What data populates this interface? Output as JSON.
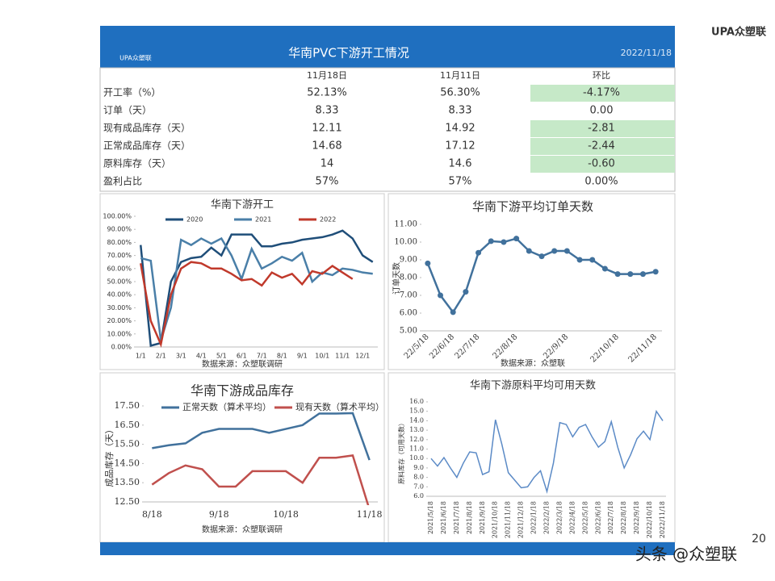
{
  "brand": "UPA众塑联",
  "header": {
    "title": "华南PVC下游开工情况",
    "date": "2022/11/18"
  },
  "table": {
    "highlight_color": "#c6e9c8",
    "columns": [
      "11月18日",
      "11月11日",
      "环比"
    ],
    "rows": [
      {
        "cells": [
          "开工率（%）",
          "52.13%",
          "56.30%",
          "-4.17%"
        ],
        "highlight": true
      },
      {
        "cells": [
          "订单（天）",
          "8.33",
          "8.33",
          "0.00"
        ],
        "highlight": false
      },
      {
        "cells": [
          "现有成品库存（天）",
          "12.11",
          "14.92",
          "-2.81"
        ],
        "highlight": true
      },
      {
        "cells": [
          "正常成品库存（天）",
          "14.68",
          "17.12",
          "-2.44"
        ],
        "highlight": true
      },
      {
        "cells": [
          "原料库存（天）",
          "14",
          "14.6",
          "-0.60"
        ],
        "highlight": true
      },
      {
        "cells": [
          "盈利占比",
          "57%",
          "57%",
          "0.00%"
        ],
        "highlight": false
      }
    ]
  },
  "chart_data": [
    {
      "type": "line",
      "title": "华南下游开工",
      "source": "数据来源：众塑联调研",
      "legend": "top",
      "categories": [
        "1/1",
        null,
        "2/1",
        null,
        "3/1",
        null,
        "4/1",
        null,
        "5/1",
        null,
        "6/1",
        null,
        "7/1",
        null,
        "8/1",
        null,
        "9/1",
        null,
        "10/1",
        null,
        "11/1",
        null,
        "12/1",
        null
      ],
      "series": [
        {
          "name": "2020",
          "color": "#1f4e79",
          "values": [
            78,
            1,
            3,
            50,
            65,
            68,
            69,
            76,
            70,
            86,
            86,
            86,
            77,
            77,
            79,
            80,
            82,
            83,
            84,
            86,
            89,
            83,
            70,
            65
          ]
        },
        {
          "name": "2021",
          "color": "#4a7fa8",
          "values": [
            68,
            66,
            5,
            30,
            82,
            78,
            83,
            79,
            83,
            70,
            52,
            75,
            60,
            64,
            69,
            66,
            72,
            50,
            57,
            55,
            60,
            59,
            57,
            56
          ]
        },
        {
          "name": "2022",
          "color": "#c0392b",
          "values": [
            64,
            20,
            2,
            40,
            60,
            65,
            64,
            60,
            60,
            56,
            51,
            52,
            47,
            57,
            53,
            56,
            48,
            58,
            56,
            62,
            57,
            52,
            null,
            null
          ]
        }
      ],
      "ylim": [
        0,
        100
      ],
      "yticks": [
        {
          "value": 0,
          "label": "0.00%"
        },
        {
          "value": 10,
          "label": "10.00%"
        },
        {
          "value": 20,
          "label": "20.00%"
        },
        {
          "value": 30,
          "label": "30.00%"
        },
        {
          "value": 40,
          "label": "40.00%"
        },
        {
          "value": 50,
          "label": "50.00%"
        },
        {
          "value": 60,
          "label": "60.00%"
        },
        {
          "value": 70,
          "label": "70.00%"
        },
        {
          "value": 80,
          "label": "80.00%"
        },
        {
          "value": 90,
          "label": "90.00%"
        },
        {
          "value": 100,
          "label": "100.00%"
        }
      ]
    },
    {
      "type": "line",
      "title": "华南下游平均订单天数",
      "ylabel": "订单天数",
      "source": "数据来源：众塑联",
      "markers": true,
      "color": "#41719c",
      "categories": [
        "22/5/18",
        null,
        "22/6/18",
        null,
        "22/7/18",
        null,
        null,
        "22/8/18",
        null,
        null,
        null,
        "22/9/18",
        null,
        null,
        null,
        "22/10/18",
        null,
        null,
        "22/11/18"
      ],
      "values": [
        8.8,
        7.0,
        6.05,
        7.2,
        9.4,
        10.05,
        10.0,
        10.2,
        9.5,
        9.2,
        9.5,
        9.5,
        9.0,
        9.0,
        8.5,
        8.2,
        8.2,
        8.2,
        8.33
      ],
      "ylim": [
        5,
        11
      ],
      "yticks": [
        {
          "value": 5,
          "label": "5.00"
        },
        {
          "value": 6,
          "label": "6.00"
        },
        {
          "value": 7,
          "label": "7.00"
        },
        {
          "value": 8,
          "label": "8.00"
        },
        {
          "value": 9,
          "label": "9.00"
        },
        {
          "value": 10,
          "label": "10.00"
        },
        {
          "value": 11,
          "label": "11.00"
        }
      ]
    },
    {
      "type": "line",
      "title": "华南下游成品库存",
      "ylabel": "成品库存（天）",
      "source": "数据来源：众塑联调研",
      "legend": "top",
      "categories": [
        "8/18",
        null,
        null,
        null,
        "9/18",
        null,
        null,
        null,
        "10/18",
        null,
        null,
        null,
        null,
        "11/18"
      ],
      "series": [
        {
          "name": "正常天数（算术平均）",
          "color": "#41719c",
          "values": [
            15.3,
            15.45,
            15.55,
            16.1,
            16.3,
            16.3,
            16.3,
            16.1,
            16.3,
            16.5,
            17.1,
            17.1,
            17.12,
            14.68
          ]
        },
        {
          "name": "现有天数（算术平均）",
          "color": "#c0504d",
          "values": [
            13.4,
            14.0,
            14.4,
            14.2,
            13.3,
            13.3,
            14.1,
            14.1,
            14.1,
            13.5,
            14.8,
            14.8,
            14.92,
            12.11
          ]
        }
      ],
      "ylim": [
        12.5,
        17.5
      ],
      "yticks": [
        {
          "value": 12.5,
          "label": "12.50"
        },
        {
          "value": 13.5,
          "label": "13.50"
        },
        {
          "value": 14.5,
          "label": "14.50"
        },
        {
          "value": 15.5,
          "label": "15.50"
        },
        {
          "value": 16.5,
          "label": "16.50"
        },
        {
          "value": 17.5,
          "label": "17.50"
        }
      ]
    },
    {
      "type": "line",
      "title": "华南下游原料平均可用天数",
      "ylabel": "原料库存（可用天数）",
      "color": "#5b8ac6",
      "categories": [
        "2021/5/18",
        null,
        "2021/6/18",
        null,
        "2021/7/18",
        null,
        "2021/8/18",
        null,
        "2021/9/18",
        null,
        "2021/10/18",
        null,
        "2021/11/18",
        null,
        "2021/12/18",
        null,
        "2022/1/18",
        null,
        "2022/2/18",
        null,
        "2022/3/18",
        null,
        "2022/4/18",
        null,
        "2022/5/18",
        null,
        "2022/6/18",
        null,
        "2022/7/18",
        null,
        "2022/8/18",
        null,
        "2022/9/18",
        null,
        "2022/10/18",
        null,
        "2022/11/18"
      ],
      "values": [
        10.0,
        9.2,
        10.1,
        9.0,
        8.0,
        9.5,
        10.7,
        10.6,
        8.3,
        8.6,
        14.1,
        11.5,
        8.5,
        7.7,
        6.9,
        7.0,
        8.0,
        8.7,
        6.5,
        9.5,
        13.8,
        13.6,
        12.3,
        13.3,
        13.6,
        12.3,
        11.2,
        11.8,
        13.9,
        11.2,
        9.0,
        10.4,
        12.1,
        12.9,
        12.0,
        15.0,
        14.0
      ],
      "ylim": [
        6,
        16
      ],
      "yticks": [
        {
          "value": 6,
          "label": "6.0"
        },
        {
          "value": 7,
          "label": "7.0"
        },
        {
          "value": 8,
          "label": "8.0"
        },
        {
          "value": 9,
          "label": "9.0"
        },
        {
          "value": 10,
          "label": "10.0"
        },
        {
          "value": 11,
          "label": "11.0"
        },
        {
          "value": 12,
          "label": "12.0"
        },
        {
          "value": 13,
          "label": "13.0"
        },
        {
          "value": 14,
          "label": "14.0"
        },
        {
          "value": 15,
          "label": "15.0"
        },
        {
          "value": 16,
          "label": "16.0"
        }
      ]
    }
  ],
  "footer": {
    "watermark": "头条 @众塑联",
    "page": "20"
  }
}
